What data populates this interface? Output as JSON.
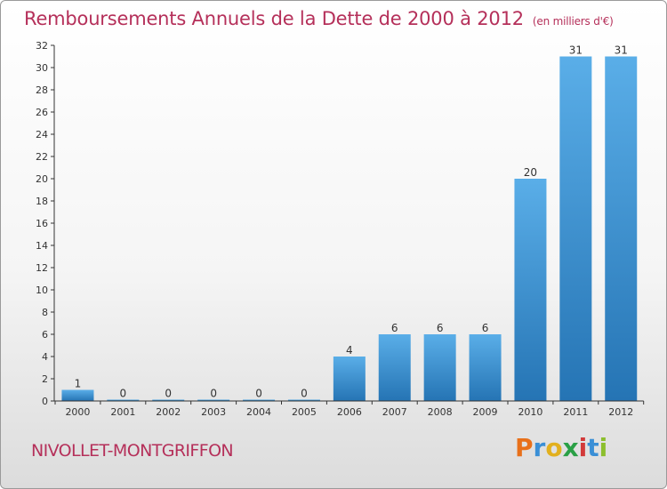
{
  "header": {
    "title": "Remboursements Annuels de la Dette de 2000 à 2012",
    "subtitle": "(en milliers d'€)"
  },
  "footer": {
    "commune": "NIVOLLET-MONTGRIFFON",
    "logo_text": "Proxiti"
  },
  "colors": {
    "title": "#b5305a",
    "bar_light": "#5aaee8",
    "bar_dark": "#2574b4",
    "axis": "#333333"
  },
  "chart_data": {
    "type": "bar",
    "title": "Remboursements Annuels de la Dette de 2000 à 2012",
    "subtitle": "(en milliers d'€)",
    "categories": [
      "2000",
      "2001",
      "2002",
      "2003",
      "2004",
      "2005",
      "2006",
      "2007",
      "2008",
      "2009",
      "2010",
      "2011",
      "2012"
    ],
    "values": [
      1,
      0,
      0,
      0,
      0,
      0,
      4,
      6,
      6,
      6,
      20,
      31,
      31
    ],
    "ylim": [
      0,
      32
    ],
    "yticks": [
      0,
      2,
      4,
      6,
      8,
      10,
      12,
      14,
      16,
      18,
      20,
      22,
      24,
      26,
      28,
      30,
      32
    ],
    "xlabel": "",
    "ylabel": "",
    "grid": false,
    "data_labels": true
  }
}
